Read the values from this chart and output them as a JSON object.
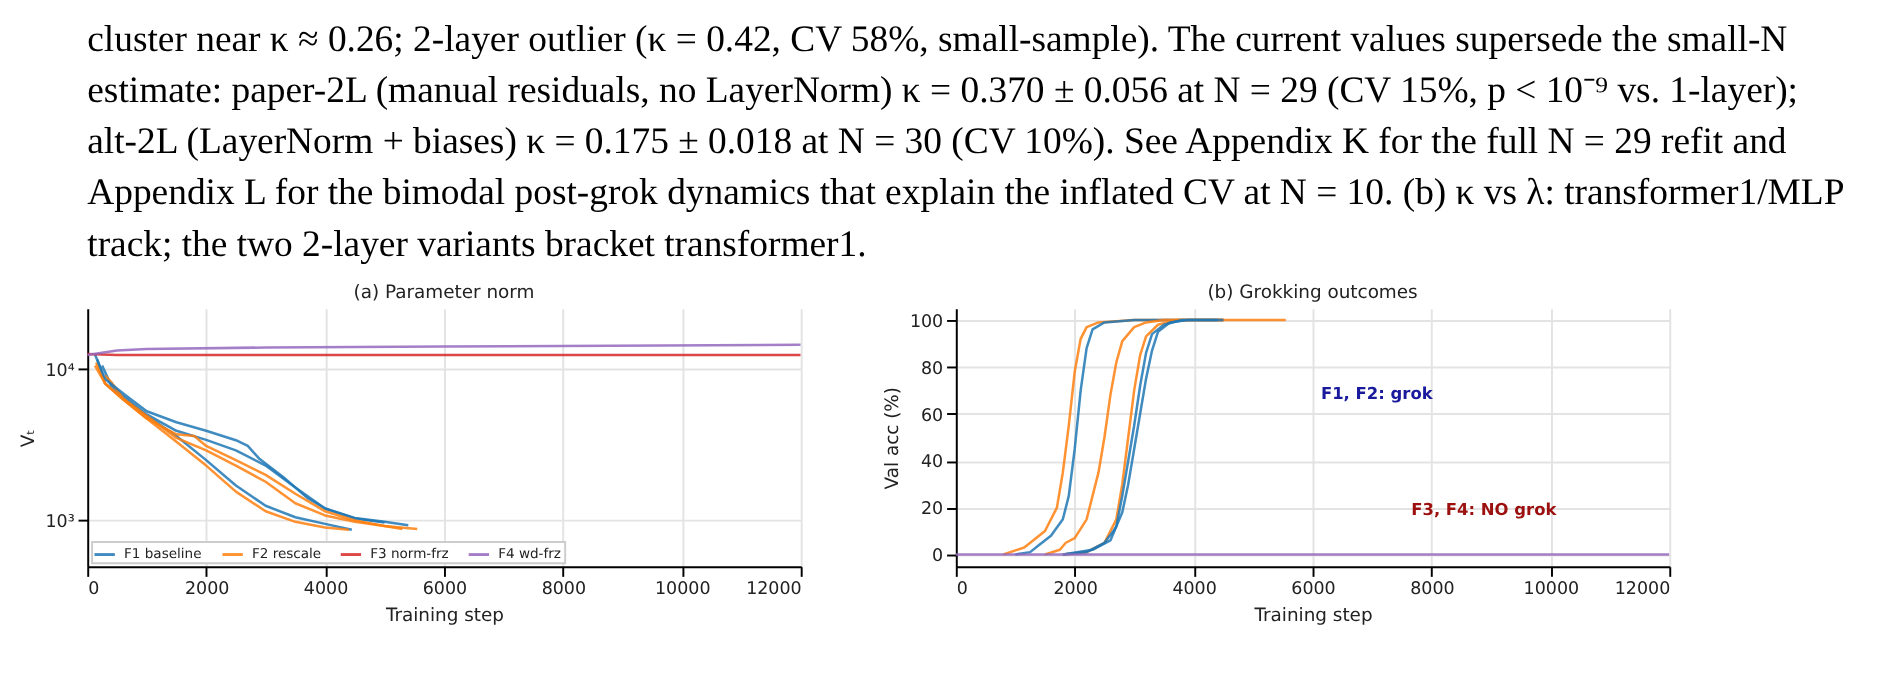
{
  "chart_data": [
    {
      "type": "other",
      "annotations": [
        "cluster near κ ≈ 0.26; 2-layer outlier (κ = 0.42, CV 58%, small-sample). The current values supersede the small-N",
        "estimate: paper-2L (manual residuals, no LayerNorm) κ = 0.370 ± 0.056 at N = 29 (CV 15%, p < 10⁻⁹ vs. 1-layer);",
        "alt-2L (LayerNorm + biases) κ = 0.175 ± 0.018 at N = 30 (CV 10%). See Appendix K for the full N = 29 refit and",
        "Appendix L for the bimodal post-grok dynamics that explain the inflated CV at N = 10. (b) κ vs λ: transformer1/MLP",
        "track; the two 2-layer variants bracket transformer1."
      ]
    },
    {
      "type": "line",
      "title": "(a) Parameter norm",
      "xlabel": "Training step",
      "ylabel": "Vₜ",
      "xlim": [
        0,
        12000
      ],
      "xticks": [
        0,
        2000,
        4000,
        6000,
        8000,
        10000,
        12000
      ],
      "ylim": [
        500,
        25000
      ],
      "yticks": [
        {
          "value": 1000,
          "label": "10³"
        },
        {
          "value": 10000,
          "label": "10⁴"
        }
      ],
      "log": true,
      "grid": true,
      "legend": "bottom left",
      "marker": "none",
      "line_style": "solid",
      "series": [
        {
          "name": "F1 baseline",
          "color": "#1f77b4",
          "x": [
            130,
            300,
            600,
            1000,
            1500,
            2000,
            2500,
            2700,
            2900,
            3300,
            3700,
            4000,
            4500,
            5000,
            5400
          ],
          "values": [
            12400,
            8550,
            6900,
            5250,
            4440,
            3900,
            3380,
            3100,
            2540,
            1930,
            1410,
            1200,
            1040,
            980,
            930
          ]
        },
        {
          "color": "#1f77b4",
          "x": [
            250,
            400,
            600,
            1000,
            1500,
            2000,
            2500,
            3000,
            3500,
            4000,
            4500,
            5000
          ],
          "values": [
            10500,
            7800,
            6600,
            5000,
            3900,
            3400,
            2900,
            2300,
            1650,
            1200,
            1030,
            970
          ]
        },
        {
          "color": "#1f77b4",
          "x": [
            170,
            300,
            600,
            1000,
            1500,
            2000,
            2500,
            3000,
            3500,
            4000,
            4450
          ],
          "values": [
            11500,
            8000,
            6400,
            4900,
            3600,
            2500,
            1700,
            1250,
            1050,
            950,
            870
          ]
        },
        {
          "name": "F2 rescale",
          "color": "#ff7f0e",
          "x": [
            130,
            300,
            600,
            1000,
            1500,
            1800,
            2000,
            2500,
            3000,
            3500,
            4000,
            4500,
            5000,
            5550
          ],
          "values": [
            10500,
            8000,
            6300,
            4700,
            3700,
            3600,
            3100,
            2500,
            2000,
            1500,
            1150,
            1000,
            920,
            880
          ]
        },
        {
          "color": "#ff7f0e",
          "x": [
            150,
            300,
            600,
            1000,
            1500,
            2000,
            2500,
            3000,
            3500,
            4000,
            4400
          ],
          "values": [
            11000,
            8000,
            6300,
            4700,
            3300,
            2300,
            1550,
            1150,
            980,
            900,
            870
          ]
        },
        {
          "color": "#ff7f0e",
          "x": [
            300,
            400,
            600,
            1000,
            1500,
            2000,
            2500,
            3000,
            3500,
            4000,
            4500,
            5000,
            5300
          ],
          "values": [
            9000,
            8200,
            6400,
            4900,
            3500,
            2900,
            2300,
            1800,
            1300,
            1080,
            980,
            920,
            880
          ]
        },
        {
          "name": "F3 norm-frz",
          "color": "#d62728",
          "x": [
            0,
            500,
            12000
          ],
          "values": [
            12500,
            12300,
            12300
          ]
        },
        {
          "name": "F4 wd-frz",
          "color": "#9467bd",
          "x": [
            0,
            500,
            1000,
            3000,
            6000,
            12000
          ],
          "values": [
            12300,
            13200,
            13500,
            13800,
            14000,
            14400
          ]
        }
      ]
    },
    {
      "type": "line",
      "title": "(b) Grokking outcomes",
      "xlabel": "Training step",
      "ylabel": "Val acc (%)",
      "xlim": [
        0,
        12000
      ],
      "xticks": [
        0,
        2000,
        4000,
        6000,
        8000,
        10000,
        12000
      ],
      "ylim": [
        -5,
        105
      ],
      "yticks": [
        0,
        20,
        40,
        60,
        80,
        100
      ],
      "grid": true,
      "marker": "none",
      "line_style": "solid",
      "annotations": [
        "F1, F2: grok",
        "F3, F4: NO grok"
      ],
      "series": [
        {
          "color": "#ff7f0e",
          "x": [
            800,
            1150,
            1300,
            1500,
            1700,
            1800,
            1900,
            2000,
            2100,
            2200,
            2400,
            3000,
            4000,
            5550
          ],
          "values": [
            0,
            3,
            6,
            10,
            20,
            35,
            55,
            78,
            92,
            97,
            99,
            100,
            100,
            100
          ]
        },
        {
          "color": "#1f77b4",
          "x": [
            1000,
            1250,
            1400,
            1600,
            1800,
            1900,
            2000,
            2100,
            2200,
            2300,
            2500,
            3000,
            4500
          ],
          "values": [
            0,
            1,
            4,
            8,
            15,
            25,
            45,
            70,
            88,
            96,
            99,
            100,
            100
          ]
        },
        {
          "color": "#ff7f0e",
          "x": [
            1500,
            1750,
            1850,
            2000,
            2200,
            2400,
            2500,
            2600,
            2700,
            2800,
            3000,
            3200,
            3500,
            4500
          ],
          "values": [
            0,
            2,
            5,
            7,
            15,
            35,
            50,
            68,
            82,
            91,
            97,
            99,
            100,
            100
          ]
        },
        {
          "color": "#ff7f0e",
          "x": [
            1800,
            2200,
            2500,
            2700,
            2800,
            2900,
            3000,
            3100,
            3200,
            3400,
            3700,
            4500
          ],
          "values": [
            0,
            1,
            5,
            15,
            30,
            50,
            70,
            85,
            93,
            98,
            100,
            100
          ]
        },
        {
          "color": "#1f77b4",
          "x": [
            1800,
            2200,
            2500,
            2650,
            2700,
            2800,
            2900,
            3000,
            3100,
            3200,
            3300,
            3500,
            3800,
            4500
          ],
          "values": [
            0,
            1,
            5,
            10,
            12,
            25,
            40,
            55,
            72,
            86,
            94,
            98,
            100,
            100
          ]
        },
        {
          "color": "#1f77b4",
          "x": [
            1800,
            2300,
            2600,
            2800,
            2900,
            3000,
            3100,
            3200,
            3300,
            3400,
            3600,
            3900,
            4400
          ],
          "values": [
            0,
            2,
            6,
            18,
            30,
            45,
            60,
            75,
            87,
            95,
            99,
            100,
            100
          ]
        },
        {
          "color": "#9467bd",
          "x": [
            0,
            12000
          ],
          "values": [
            0,
            0
          ]
        }
      ]
    }
  ]
}
